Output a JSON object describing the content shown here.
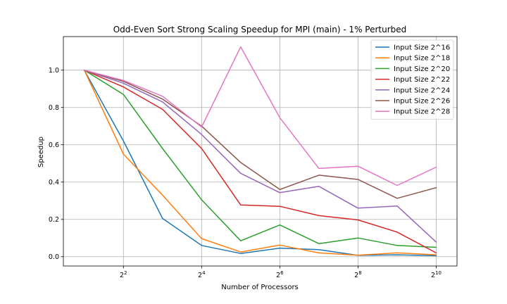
{
  "chart_data": {
    "type": "line",
    "title": "Odd-Even Sort Strong Scaling Speedup for MPI (main) - 1% Perturbed",
    "xlabel": "Number of Processors",
    "ylabel": "Speedup",
    "x_scale": "log2",
    "x": [
      2,
      4,
      8,
      16,
      32,
      64,
      128,
      256,
      512,
      1024
    ],
    "xlim": [
      1.38,
      1480
    ],
    "ylim": [
      -0.05,
      1.18
    ],
    "x_ticks": [
      {
        "value": 4,
        "base": "2",
        "exp": "2"
      },
      {
        "value": 16,
        "base": "2",
        "exp": "4"
      },
      {
        "value": 64,
        "base": "2",
        "exp": "6"
      },
      {
        "value": 256,
        "base": "2",
        "exp": "8"
      },
      {
        "value": 1024,
        "base": "2",
        "exp": "10"
      }
    ],
    "y_ticks": [
      {
        "value": 0.0,
        "label": "0.0"
      },
      {
        "value": 0.2,
        "label": "0.2"
      },
      {
        "value": 0.4,
        "label": "0.4"
      },
      {
        "value": 0.6,
        "label": "0.6"
      },
      {
        "value": 0.8,
        "label": "0.8"
      },
      {
        "value": 1.0,
        "label": "1.0"
      }
    ],
    "grid": true,
    "legend_position": "top-right",
    "series": [
      {
        "name": "Input Size 2^16",
        "color": "#1f77b4",
        "values": [
          1.0,
          0.62,
          0.205,
          0.06,
          0.017,
          0.046,
          0.038,
          0.007,
          0.01,
          0.005
        ]
      },
      {
        "name": "Input Size 2^18",
        "color": "#ff7f0e",
        "values": [
          1.0,
          0.55,
          0.33,
          0.097,
          0.025,
          0.062,
          0.02,
          0.008,
          0.02,
          0.01
        ]
      },
      {
        "name": "Input Size 2^20",
        "color": "#2ca02c",
        "values": [
          1.0,
          0.87,
          0.58,
          0.305,
          0.085,
          0.17,
          0.07,
          0.1,
          0.06,
          0.05
        ]
      },
      {
        "name": "Input Size 2^22",
        "color": "#d62728",
        "values": [
          1.0,
          0.91,
          0.79,
          0.58,
          0.277,
          0.27,
          0.22,
          0.197,
          0.132,
          0.02
        ]
      },
      {
        "name": "Input Size 2^24",
        "color": "#9467bd",
        "values": [
          1.0,
          0.93,
          0.83,
          0.655,
          0.447,
          0.343,
          0.377,
          0.26,
          0.272,
          0.078
        ]
      },
      {
        "name": "Input Size 2^26",
        "color": "#8c564b",
        "values": [
          1.0,
          0.94,
          0.845,
          0.7,
          0.505,
          0.36,
          0.437,
          0.414,
          0.313,
          0.37
        ]
      },
      {
        "name": "Input Size 2^28",
        "color": "#e377c2",
        "values": [
          1.0,
          0.945,
          0.86,
          0.695,
          1.125,
          0.745,
          0.473,
          0.485,
          0.382,
          0.48
        ]
      }
    ]
  }
}
